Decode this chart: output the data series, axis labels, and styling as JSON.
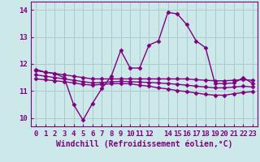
{
  "xlabel": "Windchill (Refroidissement éolien,°C)",
  "ylabel": "",
  "bg_color": "#cce8e8",
  "line_color": "#800080",
  "grid_color": "#aacccc",
  "x": [
    0,
    1,
    2,
    3,
    4,
    5,
    6,
    7,
    8,
    9,
    10,
    11,
    12,
    13,
    14,
    15,
    16,
    17,
    18,
    19,
    20,
    21,
    22,
    23
  ],
  "line1": [
    11.8,
    11.7,
    11.65,
    11.5,
    10.5,
    9.93,
    10.55,
    11.1,
    11.55,
    12.5,
    11.85,
    11.85,
    12.7,
    12.85,
    13.9,
    13.85,
    13.45,
    12.85,
    12.6,
    11.28,
    11.28,
    11.3,
    11.5,
    11.28
  ],
  "line2": [
    11.75,
    11.7,
    11.65,
    11.6,
    11.55,
    11.5,
    11.45,
    11.45,
    11.45,
    11.45,
    11.45,
    11.45,
    11.45,
    11.45,
    11.45,
    11.45,
    11.45,
    11.42,
    11.4,
    11.38,
    11.38,
    11.4,
    11.42,
    11.4
  ],
  "line3": [
    11.6,
    11.55,
    11.5,
    11.45,
    11.4,
    11.35,
    11.3,
    11.32,
    11.34,
    11.36,
    11.35,
    11.33,
    11.32,
    11.3,
    11.28,
    11.25,
    11.22,
    11.18,
    11.15,
    11.12,
    11.12,
    11.15,
    11.18,
    11.15
  ],
  "line4": [
    11.45,
    11.42,
    11.38,
    11.35,
    11.3,
    11.25,
    11.22,
    11.25,
    11.27,
    11.28,
    11.27,
    11.22,
    11.18,
    11.12,
    11.08,
    11.02,
    10.98,
    10.93,
    10.88,
    10.85,
    10.85,
    10.9,
    10.95,
    10.98
  ],
  "xlim": [
    -0.5,
    23.5
  ],
  "ylim": [
    9.7,
    14.3
  ],
  "yticks": [
    10,
    11,
    12,
    13,
    14
  ],
  "xticks": [
    0,
    1,
    2,
    3,
    4,
    5,
    6,
    7,
    8,
    9,
    10,
    11,
    12,
    14,
    15,
    16,
    17,
    18,
    19,
    20,
    21,
    22,
    23
  ],
  "marker": "D",
  "markersize": 2.5,
  "linewidth": 1.0,
  "font_color": "#800080",
  "font_size": 6.5,
  "label_font_size": 7
}
